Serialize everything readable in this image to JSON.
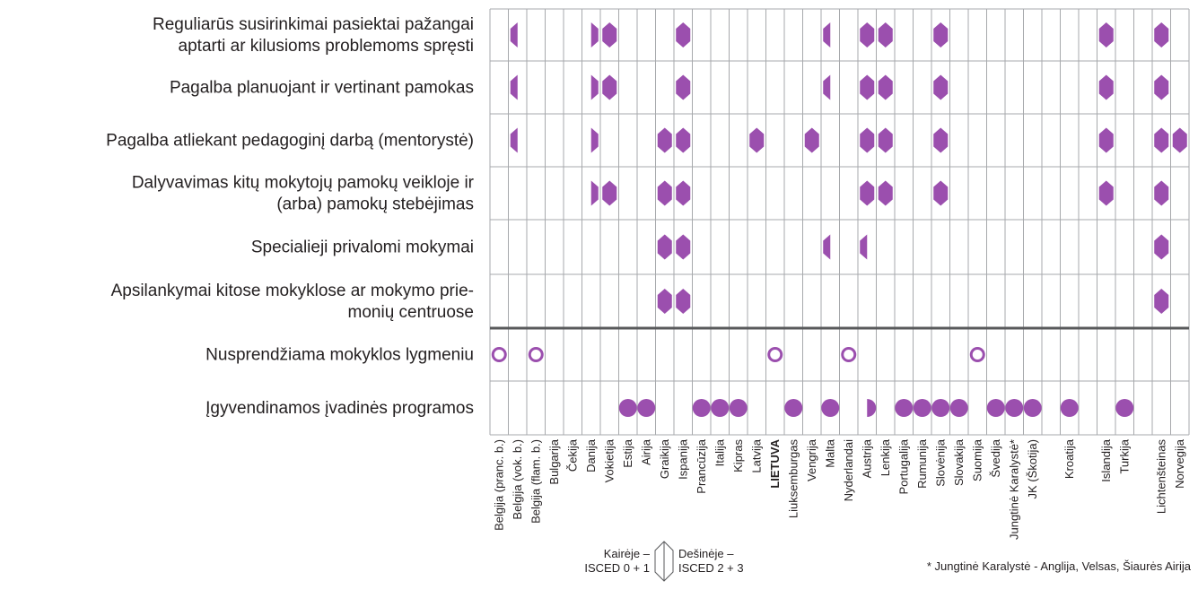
{
  "rows": [
    {
      "label": [
        "Reguliarūs susirinkimai pasiektai pažangai",
        "aptarti ar kilusioms problemoms spręsti"
      ],
      "marks": [
        {
          "col": 1,
          "shape": "left"
        },
        {
          "col": 5,
          "shape": "right"
        },
        {
          "col": 6,
          "shape": "full"
        },
        {
          "col": 10,
          "shape": "full"
        },
        {
          "col": 18,
          "shape": "left"
        },
        {
          "col": 20,
          "shape": "full"
        },
        {
          "col": 21,
          "shape": "full"
        },
        {
          "col": 24,
          "shape": "full"
        },
        {
          "col": 31,
          "shape": "full"
        },
        {
          "col": 33,
          "shape": "full"
        }
      ]
    },
    {
      "label": [
        "Pagalba planuojant ir vertinant pamokas"
      ],
      "marks": [
        {
          "col": 1,
          "shape": "left"
        },
        {
          "col": 5,
          "shape": "right"
        },
        {
          "col": 6,
          "shape": "full"
        },
        {
          "col": 10,
          "shape": "full"
        },
        {
          "col": 18,
          "shape": "left"
        },
        {
          "col": 20,
          "shape": "full"
        },
        {
          "col": 21,
          "shape": "full"
        },
        {
          "col": 24,
          "shape": "full"
        },
        {
          "col": 31,
          "shape": "full"
        },
        {
          "col": 33,
          "shape": "full"
        }
      ]
    },
    {
      "label": [
        "Pagalba atliekant pedagoginį darbą (mentorystė)"
      ],
      "marks": [
        {
          "col": 1,
          "shape": "left"
        },
        {
          "col": 5,
          "shape": "right"
        },
        {
          "col": 9,
          "shape": "full"
        },
        {
          "col": 10,
          "shape": "full"
        },
        {
          "col": 14,
          "shape": "full"
        },
        {
          "col": 17,
          "shape": "full"
        },
        {
          "col": 20,
          "shape": "full"
        },
        {
          "col": 21,
          "shape": "full"
        },
        {
          "col": 24,
          "shape": "full"
        },
        {
          "col": 31,
          "shape": "full"
        },
        {
          "col": 33,
          "shape": "full"
        },
        {
          "col": 34,
          "shape": "full"
        }
      ]
    },
    {
      "label": [
        "Dalyvavimas kitų mokytojų pamokų veikloje ir",
        "(arba) pamokų stebėjimas"
      ],
      "marks": [
        {
          "col": 5,
          "shape": "right"
        },
        {
          "col": 6,
          "shape": "full"
        },
        {
          "col": 9,
          "shape": "full"
        },
        {
          "col": 10,
          "shape": "full"
        },
        {
          "col": 20,
          "shape": "full"
        },
        {
          "col": 21,
          "shape": "full"
        },
        {
          "col": 24,
          "shape": "full"
        },
        {
          "col": 31,
          "shape": "full"
        },
        {
          "col": 33,
          "shape": "full"
        }
      ]
    },
    {
      "label": [
        "Specialieji privalomi mokymai"
      ],
      "marks": [
        {
          "col": 9,
          "shape": "full"
        },
        {
          "col": 10,
          "shape": "full"
        },
        {
          "col": 18,
          "shape": "left"
        },
        {
          "col": 20,
          "shape": "left"
        },
        {
          "col": 33,
          "shape": "full"
        }
      ]
    },
    {
      "label": [
        "Apsilankymai kitose mokyklose ar mokymo prie-",
        "monių centruose"
      ],
      "marks": [
        {
          "col": 9,
          "shape": "full"
        },
        {
          "col": 10,
          "shape": "full"
        },
        {
          "col": 33,
          "shape": "full"
        }
      ]
    },
    {
      "label": [
        "Nusprendžiama mokyklos lygmeniu"
      ],
      "marks": [
        {
          "col": 0,
          "shape": "ring"
        },
        {
          "col": 2,
          "shape": "ring"
        },
        {
          "col": 15,
          "shape": "ring"
        },
        {
          "col": 19,
          "shape": "ring"
        },
        {
          "col": 26,
          "shape": "ring"
        }
      ]
    },
    {
      "label": [
        "Įgyvendinamos įvadinės programos"
      ],
      "marks": [
        {
          "col": 7,
          "shape": "dot"
        },
        {
          "col": 8,
          "shape": "dot"
        },
        {
          "col": 11,
          "shape": "dot"
        },
        {
          "col": 12,
          "shape": "dot"
        },
        {
          "col": 13,
          "shape": "dot"
        },
        {
          "col": 16,
          "shape": "dot"
        },
        {
          "col": 18,
          "shape": "dot"
        },
        {
          "col": 20,
          "shape": "dot-right"
        },
        {
          "col": 22,
          "shape": "dot"
        },
        {
          "col": 23,
          "shape": "dot"
        },
        {
          "col": 24,
          "shape": "dot"
        },
        {
          "col": 25,
          "shape": "dot"
        },
        {
          "col": 27,
          "shape": "dot"
        },
        {
          "col": 28,
          "shape": "dot"
        },
        {
          "col": 29,
          "shape": "dot"
        },
        {
          "col": 30,
          "shape": "dot"
        },
        {
          "col": 32,
          "shape": "dot"
        }
      ]
    }
  ],
  "columns": [
    "Belgija (pranc. b.)",
    "Belgija (vok. b.)",
    "Belgija (flam. b.)",
    "Bulgarija",
    "Čekija",
    "Danija",
    "Vokietija",
    "Estija",
    "Airija",
    "Graikija",
    "Ispanija",
    "Prancūzija",
    "Italija",
    "Kipras",
    "Latvija",
    "LIETUVA",
    "Liuksemburgas",
    "Vengrija",
    "Malta",
    "Nyderlandai",
    "Austrija",
    "Lenkija",
    "Portugalija",
    "Rumunija",
    "Slovėnija",
    "Slovakija",
    "Suomija",
    "Švedija",
    "Jungtinė Karalystė*",
    "JK (Škotija)",
    "Kroatija",
    "Islandija",
    "Turkija",
    "Lichtenšteinas",
    "Norvegija"
  ],
  "bold_column": 15,
  "color": "#9b4fae",
  "legend": {
    "left": [
      "Kairėje –",
      "ISCED 0 + 1"
    ],
    "right": [
      "Dešinėje –",
      "ISCED 2 + 3"
    ]
  },
  "footnote": "* Jungtinė Karalystė - Anglija, Velsas, Šiaurės Airija"
}
